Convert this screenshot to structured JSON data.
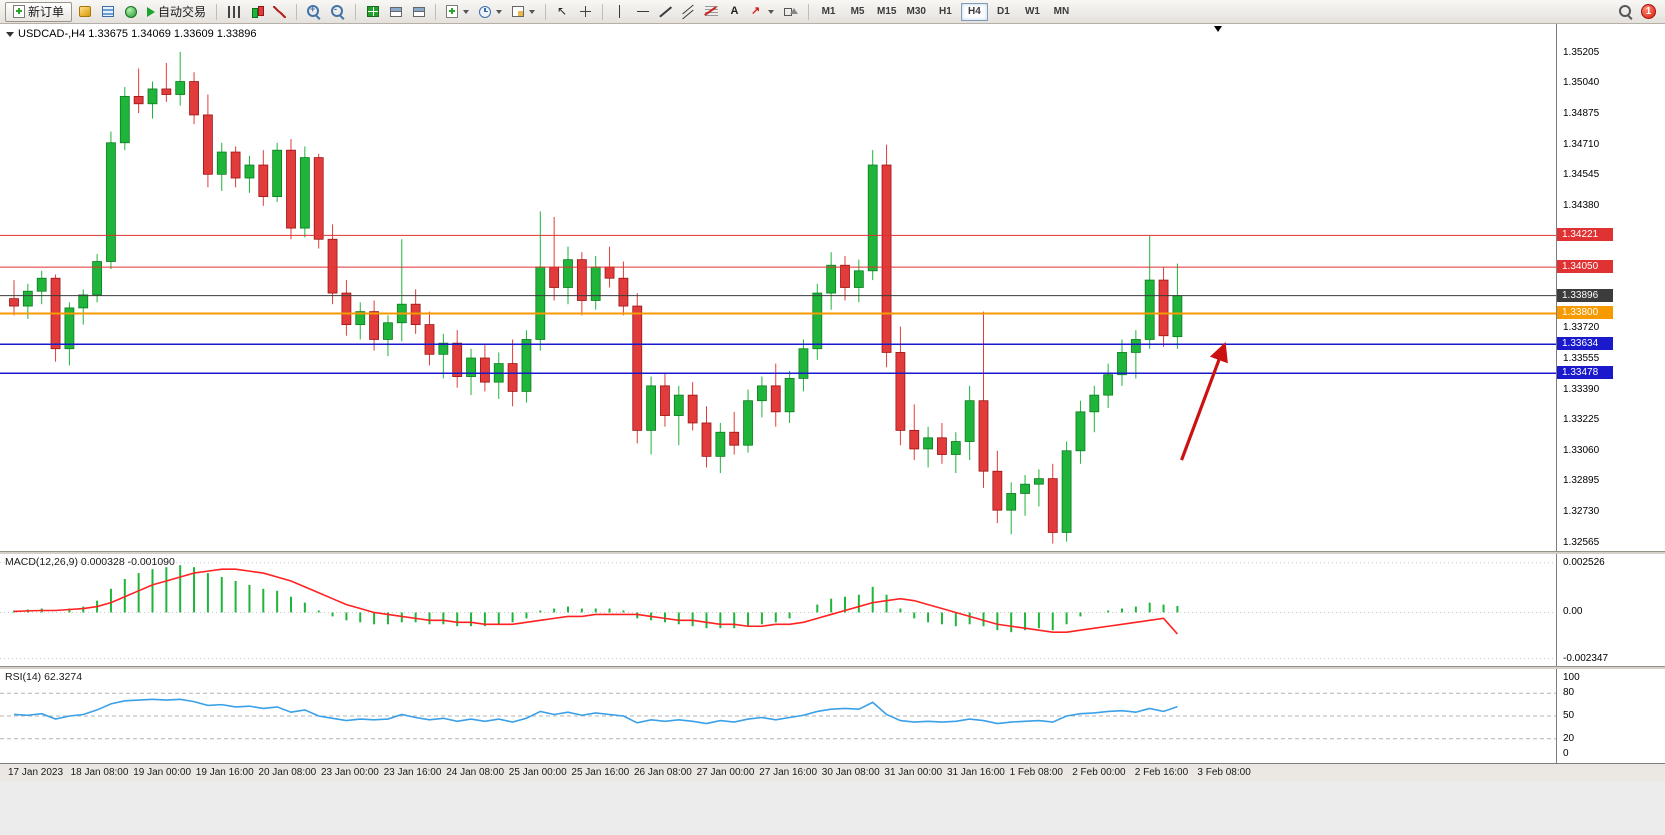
{
  "toolbar": {
    "new_order_label": "新订单",
    "autotrading_label": "自动交易",
    "text_tool_label": "A",
    "timeframes": [
      "M1",
      "M5",
      "M15",
      "M30",
      "H1",
      "H4",
      "D1",
      "W1",
      "MN"
    ],
    "active_timeframe": "H4",
    "notification_count": "1",
    "icons": [
      "new-order-icon",
      "metaeditor-icon",
      "data-window-icon",
      "navigator-icon",
      "autotrading-play-icon",
      "bars-chart-icon",
      "candlestick-chart-icon",
      "line-chart-icon",
      "zoom-in-icon",
      "zoom-out-icon",
      "tile-windows-icon",
      "cascade-windows-icon",
      "arrange-grid-icon",
      "new-chart-icon",
      "periods-clock-icon",
      "template-icon",
      "cursor-icon",
      "crosshair-icon",
      "vertical-line-icon",
      "horizontal-line-icon",
      "trendline-icon",
      "channel-icon",
      "fibonacci-icon",
      "text-icon",
      "arrow-tool-icon",
      "shapes-icon",
      "search-icon",
      "notification-badge"
    ]
  },
  "chart_header": {
    "title": "USDCAD-,H4 1.33675 1.34069 1.33609 1.33896",
    "symbol": "USDCAD-",
    "period": "H4",
    "open": "1.33675",
    "high": "1.34069",
    "low": "1.33609",
    "close": "1.33896"
  },
  "indicators": {
    "macd_label": "MACD(12,26,9) 0.000328 -0.001090",
    "rsi_label": "RSI(14) 62.3274"
  },
  "price_axis": {
    "ticks": [
      "1.35205",
      "1.35040",
      "1.34875",
      "1.34710",
      "1.34545",
      "1.34380",
      "1.33720",
      "1.33555",
      "1.33390",
      "1.33225",
      "1.33060",
      "1.32895",
      "1.32730",
      "1.32565"
    ],
    "badges": [
      {
        "label": "1.34221",
        "price": 1.34221,
        "color": "#e03232"
      },
      {
        "label": "1.34050",
        "price": 1.3405,
        "color": "#e03232"
      },
      {
        "label": "1.33896",
        "price": 1.33896,
        "color": "#3c3c3c"
      },
      {
        "label": "1.33800",
        "price": 1.338,
        "color": "#f79a00"
      },
      {
        "label": "1.33634",
        "price": 1.33634,
        "color": "#1a1acc"
      },
      {
        "label": "1.33478",
        "price": 1.33478,
        "color": "#1a1acc"
      }
    ]
  },
  "time_axis": {
    "labels": [
      "17 Jan 2023",
      "18 Jan 08:00",
      "19 Jan 00:00",
      "19 Jan 16:00",
      "20 Jan 08:00",
      "23 Jan 00:00",
      "23 Jan 16:00",
      "24 Jan 08:00",
      "25 Jan 00:00",
      "25 Jan 16:00",
      "26 Jan 08:00",
      "27 Jan 00:00",
      "27 Jan 16:00",
      "30 Jan 08:00",
      "31 Jan 00:00",
      "31 Jan 16:00",
      "1 Feb 08:00",
      "2 Feb 00:00",
      "2 Feb 16:00",
      "3 Feb 08:00"
    ]
  },
  "chart_data": [
    {
      "type": "candlestick",
      "symbol": "USDCAD-",
      "timeframe": "H4",
      "ylim": [
        1.3252,
        1.3536
      ],
      "up_color": "#1eb53a",
      "down_color": "#e23b3b",
      "ohlc": [
        [
          1.3388,
          1.3398,
          1.3379,
          1.3384
        ],
        [
          1.3384,
          1.3396,
          1.3377,
          1.3392
        ],
        [
          1.3392,
          1.3403,
          1.3385,
          1.3399
        ],
        [
          1.3399,
          1.3401,
          1.3354,
          1.3361
        ],
        [
          1.3361,
          1.3386,
          1.3352,
          1.3383
        ],
        [
          1.3383,
          1.3393,
          1.3374,
          1.339
        ],
        [
          1.339,
          1.3412,
          1.3386,
          1.3408
        ],
        [
          1.3408,
          1.3478,
          1.3404,
          1.3472
        ],
        [
          1.3472,
          1.3502,
          1.3468,
          1.3497
        ],
        [
          1.3497,
          1.3512,
          1.3488,
          1.3493
        ],
        [
          1.3493,
          1.3505,
          1.3485,
          1.3501
        ],
        [
          1.3501,
          1.3515,
          1.3494,
          1.3498
        ],
        [
          1.3498,
          1.3521,
          1.3492,
          1.3505
        ],
        [
          1.3505,
          1.351,
          1.3482,
          1.3487
        ],
        [
          1.3487,
          1.3498,
          1.3448,
          1.3455
        ],
        [
          1.3455,
          1.3472,
          1.3446,
          1.3467
        ],
        [
          1.3467,
          1.347,
          1.3448,
          1.3453
        ],
        [
          1.3453,
          1.3465,
          1.3445,
          1.346
        ],
        [
          1.346,
          1.3468,
          1.3438,
          1.3443
        ],
        [
          1.3443,
          1.3472,
          1.344,
          1.3468
        ],
        [
          1.3468,
          1.3474,
          1.342,
          1.3426
        ],
        [
          1.3426,
          1.347,
          1.3421,
          1.3464
        ],
        [
          1.3464,
          1.3466,
          1.3415,
          1.342
        ],
        [
          1.342,
          1.3428,
          1.3385,
          1.3391
        ],
        [
          1.3391,
          1.3398,
          1.3368,
          1.3374
        ],
        [
          1.3374,
          1.3386,
          1.3366,
          1.3381
        ],
        [
          1.3381,
          1.3387,
          1.336,
          1.3366
        ],
        [
          1.3366,
          1.3379,
          1.3357,
          1.3375
        ],
        [
          1.3375,
          1.342,
          1.3365,
          1.3385
        ],
        [
          1.3385,
          1.3393,
          1.3369,
          1.3374
        ],
        [
          1.3374,
          1.3381,
          1.3352,
          1.3358
        ],
        [
          1.3358,
          1.3369,
          1.3345,
          1.3364
        ],
        [
          1.3364,
          1.3371,
          1.334,
          1.3346
        ],
        [
          1.3346,
          1.3361,
          1.3336,
          1.3356
        ],
        [
          1.3356,
          1.3363,
          1.3338,
          1.3343
        ],
        [
          1.3343,
          1.3359,
          1.3334,
          1.3353
        ],
        [
          1.3353,
          1.3366,
          1.333,
          1.3338
        ],
        [
          1.3338,
          1.3371,
          1.3332,
          1.3366
        ],
        [
          1.3366,
          1.3435,
          1.336,
          1.3405
        ],
        [
          1.3405,
          1.3432,
          1.3387,
          1.3394
        ],
        [
          1.3394,
          1.3416,
          1.3385,
          1.3409
        ],
        [
          1.3409,
          1.3413,
          1.3379,
          1.3387
        ],
        [
          1.3387,
          1.3411,
          1.3382,
          1.3405
        ],
        [
          1.3405,
          1.3416,
          1.3394,
          1.3399
        ],
        [
          1.3399,
          1.3408,
          1.3379,
          1.3384
        ],
        [
          1.3384,
          1.3391,
          1.331,
          1.3317
        ],
        [
          1.3317,
          1.3346,
          1.3304,
          1.3341
        ],
        [
          1.3341,
          1.3348,
          1.3319,
          1.3325
        ],
        [
          1.3325,
          1.3341,
          1.3309,
          1.3336
        ],
        [
          1.3336,
          1.3343,
          1.3317,
          1.3321
        ],
        [
          1.3321,
          1.333,
          1.3297,
          1.3303
        ],
        [
          1.3303,
          1.3321,
          1.3294,
          1.3316
        ],
        [
          1.3316,
          1.3327,
          1.3304,
          1.3309
        ],
        [
          1.3309,
          1.3339,
          1.3305,
          1.3333
        ],
        [
          1.3333,
          1.3346,
          1.3324,
          1.3341
        ],
        [
          1.3341,
          1.3353,
          1.3319,
          1.3327
        ],
        [
          1.3327,
          1.3349,
          1.3321,
          1.3345
        ],
        [
          1.3345,
          1.3366,
          1.3338,
          1.3361
        ],
        [
          1.3361,
          1.3396,
          1.3355,
          1.3391
        ],
        [
          1.3391,
          1.3413,
          1.3382,
          1.3406
        ],
        [
          1.3406,
          1.3411,
          1.3387,
          1.3394
        ],
        [
          1.3394,
          1.3409,
          1.3386,
          1.3403
        ],
        [
          1.3403,
          1.3468,
          1.3398,
          1.346
        ],
        [
          1.346,
          1.3471,
          1.3351,
          1.3359
        ],
        [
          1.3359,
          1.3373,
          1.3309,
          1.3317
        ],
        [
          1.3317,
          1.3331,
          1.3301,
          1.3307
        ],
        [
          1.3307,
          1.3319,
          1.3297,
          1.3313
        ],
        [
          1.3313,
          1.3321,
          1.3299,
          1.3304
        ],
        [
          1.3304,
          1.3316,
          1.3294,
          1.3311
        ],
        [
          1.3311,
          1.3341,
          1.3301,
          1.3333
        ],
        [
          1.3333,
          1.3381,
          1.3286,
          1.3295
        ],
        [
          1.3295,
          1.3306,
          1.3267,
          1.3274
        ],
        [
          1.3274,
          1.3289,
          1.3261,
          1.3283
        ],
        [
          1.3283,
          1.3293,
          1.3271,
          1.3288
        ],
        [
          1.3288,
          1.3296,
          1.3276,
          1.3291
        ],
        [
          1.3291,
          1.3299,
          1.3256,
          1.3262
        ],
        [
          1.3262,
          1.3311,
          1.3257,
          1.3306
        ],
        [
          1.3306,
          1.3333,
          1.3299,
          1.3327
        ],
        [
          1.3327,
          1.3341,
          1.3316,
          1.3336
        ],
        [
          1.3336,
          1.3353,
          1.3329,
          1.3347
        ],
        [
          1.3347,
          1.3366,
          1.3341,
          1.3359
        ],
        [
          1.3359,
          1.3371,
          1.3345,
          1.3366
        ],
        [
          1.3366,
          1.3422,
          1.3361,
          1.3398
        ],
        [
          1.3398,
          1.3405,
          1.3362,
          1.3368
        ],
        [
          1.33675,
          1.34069,
          1.33609,
          1.33896
        ]
      ],
      "hlines": [
        {
          "price": 1.34221,
          "color": "#e03232",
          "width": 1
        },
        {
          "price": 1.3405,
          "color": "#e03232",
          "width": 1
        },
        {
          "price": 1.33896,
          "color": "#3c3c3c",
          "width": 1
        },
        {
          "price": 1.338,
          "color": "#f79a00",
          "width": 2
        },
        {
          "price": 1.33634,
          "color": "#1a1acc",
          "width": 1.5
        },
        {
          "price": 1.33478,
          "color": "#1a1acc",
          "width": 1.5
        }
      ],
      "arrow": {
        "from_index": 84.3,
        "from_price": 1.3301,
        "to_index": 87.4,
        "to_price": 1.3363,
        "color": "#cc1111"
      }
    },
    {
      "type": "bar",
      "name": "MACD",
      "params": [
        12,
        26,
        9
      ],
      "current_values": [
        "0.000328",
        "-0.001090"
      ],
      "ylim": [
        -0.00272,
        0.00297
      ],
      "bar_color": "#1eb53a",
      "signal_color": "#ff2222",
      "axis_ticks": [
        {
          "label": "0.002526",
          "value": 0.002526
        },
        {
          "label": "0.00",
          "value": 0
        },
        {
          "label": "-0.002347",
          "value": -0.002347
        }
      ],
      "values": [
        0.0001,
        0.00015,
        0.0002,
        0.0,
        0.0002,
        0.0003,
        0.0006,
        0.0012,
        0.0017,
        0.002,
        0.0022,
        0.0023,
        0.0024,
        0.0023,
        0.002,
        0.0018,
        0.0016,
        0.0014,
        0.0012,
        0.0011,
        0.0008,
        0.0005,
        0.0001,
        -0.0002,
        -0.0004,
        -0.0005,
        -0.0006,
        -0.0006,
        -0.0005,
        -0.0005,
        -0.0006,
        -0.0006,
        -0.0007,
        -0.0007,
        -0.0007,
        -0.0006,
        -0.0005,
        -0.0003,
        0.0001,
        0.0002,
        0.0003,
        0.0002,
        0.0002,
        0.0002,
        0.0001,
        -0.0003,
        -0.0004,
        -0.0005,
        -0.0006,
        -0.0007,
        -0.0008,
        -0.0008,
        -0.0008,
        -0.0007,
        -0.0006,
        -0.0005,
        -0.0003,
        0.0,
        0.0004,
        0.0007,
        0.0008,
        0.0009,
        0.0013,
        0.0009,
        0.0002,
        -0.0003,
        -0.0005,
        -0.0006,
        -0.0007,
        -0.0006,
        -0.0007,
        -0.0009,
        -0.001,
        -0.0009,
        -0.0008,
        -0.0009,
        -0.0006,
        -0.0002,
        0.0,
        0.0001,
        0.0002,
        0.0003,
        0.0005,
        0.0004,
        0.000328
      ],
      "signal": [
        5e-05,
        8e-05,
        0.0001,
        0.0001,
        0.00015,
        0.0002,
        0.0003,
        0.0005,
        0.0008,
        0.0011,
        0.0014,
        0.0016,
        0.0018,
        0.002,
        0.0021,
        0.0022,
        0.0022,
        0.0021,
        0.002,
        0.0018,
        0.0016,
        0.0013,
        0.001,
        0.0007,
        0.0004,
        0.0002,
        0.0,
        -0.0001,
        -0.0002,
        -0.0003,
        -0.0004,
        -0.0004,
        -0.0005,
        -0.0005,
        -0.0006,
        -0.0006,
        -0.0006,
        -0.0005,
        -0.0004,
        -0.0003,
        -0.0002,
        -0.0002,
        -0.0001,
        -0.0001,
        -0.0001,
        -0.0001,
        -0.0002,
        -0.0003,
        -0.0004,
        -0.0004,
        -0.0005,
        -0.0006,
        -0.0006,
        -0.0007,
        -0.0007,
        -0.0006,
        -0.0006,
        -0.0005,
        -0.0003,
        -0.0001,
        0.0001,
        0.0003,
        0.0005,
        0.0006,
        0.0007,
        0.0006,
        0.0004,
        0.0002,
        0.0,
        -0.0002,
        -0.0004,
        -0.0006,
        -0.0007,
        -0.0008,
        -0.0009,
        -0.001,
        -0.001,
        -0.0009,
        -0.0008,
        -0.0007,
        -0.0006,
        -0.0005,
        -0.0004,
        -0.0003,
        -0.00109
      ]
    },
    {
      "type": "line",
      "name": "RSI",
      "params": [
        14
      ],
      "current_value": "62.3274",
      "ylim": [
        -12,
        112
      ],
      "line_color": "#3aa0e8",
      "levels": [
        80,
        50,
        20
      ],
      "axis_ticks": [
        {
          "label": "100",
          "value": 100
        },
        {
          "label": "80",
          "value": 80
        },
        {
          "label": "50",
          "value": 50
        },
        {
          "label": "20",
          "value": 20
        },
        {
          "label": "0",
          "value": 0
        }
      ],
      "values": [
        52,
        51,
        53,
        46,
        50,
        52,
        58,
        66,
        70,
        71,
        72,
        71,
        72,
        69,
        64,
        65,
        62,
        63,
        60,
        62,
        55,
        58,
        50,
        47,
        44,
        46,
        45,
        46,
        52,
        48,
        45,
        47,
        43,
        46,
        43,
        46,
        42,
        47,
        56,
        52,
        55,
        51,
        54,
        52,
        50,
        41,
        45,
        43,
        45,
        43,
        40,
        44,
        42,
        46,
        48,
        45,
        48,
        51,
        56,
        59,
        60,
        59,
        68,
        52,
        44,
        42,
        43,
        42,
        43,
        46,
        44,
        40,
        42,
        43,
        44,
        42,
        50,
        53,
        54,
        56,
        57,
        55,
        60,
        56,
        62.3274
      ]
    }
  ]
}
